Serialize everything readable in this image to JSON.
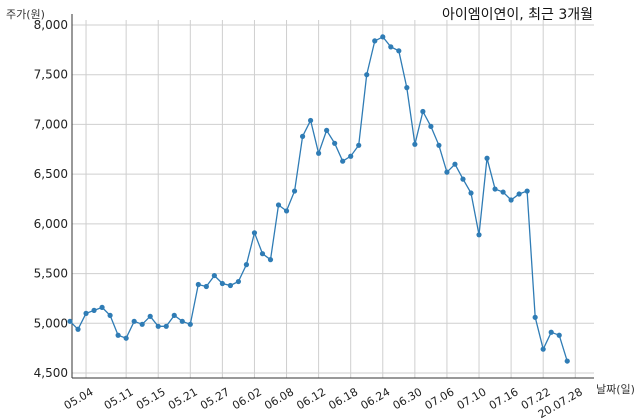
{
  "chart_data": {
    "type": "line",
    "title": "아이엠이연이, 최근 3개월",
    "ylabel": "주가(원)",
    "xlabel": "날짜(일)",
    "ylim": [
      4450,
      8050
    ],
    "yticks": [
      4500,
      5000,
      5500,
      6000,
      6500,
      7000,
      7500,
      8000
    ],
    "ytick_labels": [
      "4,500",
      "5,000",
      "5,500",
      "6,000",
      "6,500",
      "7,000",
      "7,500",
      "8,000"
    ],
    "xtick_labels": [
      "05.04",
      "05.11",
      "05.15",
      "05.21",
      "05.27",
      "06.02",
      "06.08",
      "06.12",
      "06.18",
      "06.24",
      "06.30",
      "07.06",
      "07.10",
      "07.16",
      "07.22",
      "20.07.28"
    ],
    "xtick_index": [
      2,
      7,
      11,
      15,
      19,
      23,
      27,
      31,
      35,
      39,
      43,
      47,
      51,
      55,
      59,
      63
    ],
    "grid": true,
    "color": "#2f7cb5",
    "series": [
      {
        "values": [
          5020,
          4940,
          5100,
          5130,
          5160,
          5080,
          4880,
          4850,
          5020,
          4990,
          5070,
          4970,
          4970,
          5080,
          5020,
          4990,
          5390,
          5370,
          5480,
          5400,
          5380,
          5420,
          5590,
          5910,
          5700,
          5640,
          6190,
          6130,
          6330,
          6880,
          7040,
          6710,
          6940,
          6810,
          6630,
          6680,
          6790,
          7500,
          7840,
          7880,
          7780,
          7740,
          7370,
          6800,
          7130,
          6980,
          6790,
          6520,
          6600,
          6450,
          6310,
          5890,
          6660,
          6350,
          6320,
          6240,
          6300,
          6330,
          5060,
          4740,
          4910,
          4880,
          4620
        ]
      }
    ]
  }
}
